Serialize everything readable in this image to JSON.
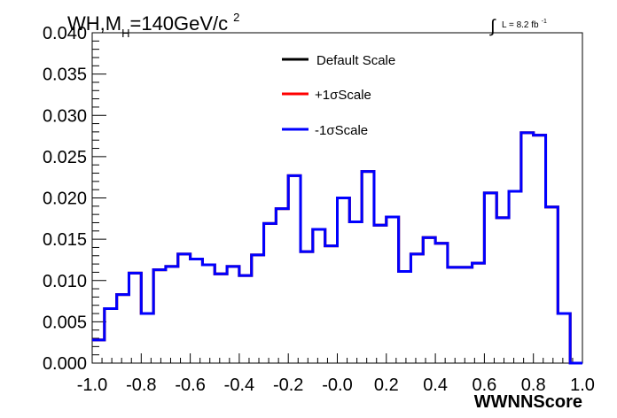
{
  "chart_data": {
    "type": "line",
    "title_main": "WH,M",
    "title_sub": "H",
    "title_rest": "=140GeV/c",
    "title_sup": "2",
    "lumi_label": "L = 8.2 fb",
    "lumi_sup": "-1",
    "lumi_integral_symbol": "∫",
    "xlabel": "WWNNScore",
    "ylabel": "",
    "xlim": [
      -1.0,
      1.0
    ],
    "ylim": [
      0.0,
      0.04
    ],
    "grid": false,
    "legend_position": "top-center",
    "x_tick_labels": [
      "-1.0",
      "-0.8",
      "-0.6",
      "-0.4",
      "-0.2",
      "-0.0",
      "0.2",
      "0.4",
      "0.6",
      "0.8",
      "1.0"
    ],
    "y_tick_labels": [
      "0.000",
      "0.005",
      "0.010",
      "0.015",
      "0.020",
      "0.025",
      "0.030",
      "0.035",
      "0.040"
    ],
    "bin_edges": [
      -1.0,
      -0.95,
      -0.9,
      -0.85,
      -0.8,
      -0.75,
      -0.7,
      -0.65,
      -0.6,
      -0.55,
      -0.5,
      -0.45,
      -0.4,
      -0.35,
      -0.3,
      -0.25,
      -0.2,
      -0.15,
      -0.1,
      -0.05,
      0.0,
      0.05,
      0.1,
      0.15,
      0.2,
      0.25,
      0.3,
      0.35,
      0.4,
      0.45,
      0.5,
      0.55,
      0.6,
      0.65,
      0.7,
      0.75,
      0.8,
      0.85,
      0.9,
      0.95,
      1.0
    ],
    "series": [
      {
        "name": "Default Scale",
        "color": "#000000",
        "values": [
          0.0028,
          0.0066,
          0.0083,
          0.0109,
          0.006,
          0.0113,
          0.0117,
          0.0132,
          0.0126,
          0.0119,
          0.0108,
          0.0117,
          0.0106,
          0.0131,
          0.0169,
          0.0187,
          0.0227,
          0.0135,
          0.0162,
          0.0142,
          0.02,
          0.0171,
          0.0232,
          0.0167,
          0.0177,
          0.0111,
          0.0132,
          0.0152,
          0.0145,
          0.0116,
          0.0116,
          0.0121,
          0.0206,
          0.0176,
          0.0208,
          0.0279,
          0.0276,
          0.0189,
          0.006,
          0.0
        ]
      },
      {
        "name": "+1σScale",
        "color": "#ff0000",
        "values": [
          0.0028,
          0.0066,
          0.0083,
          0.0109,
          0.006,
          0.0113,
          0.0117,
          0.0132,
          0.0126,
          0.0119,
          0.0108,
          0.0117,
          0.0106,
          0.0131,
          0.0169,
          0.0187,
          0.0227,
          0.0135,
          0.0162,
          0.0142,
          0.02,
          0.0171,
          0.0232,
          0.0167,
          0.0177,
          0.0111,
          0.0132,
          0.0152,
          0.0145,
          0.0116,
          0.0116,
          0.0121,
          0.0206,
          0.0176,
          0.0208,
          0.0279,
          0.0276,
          0.0189,
          0.006,
          0.0
        ]
      },
      {
        "name": "-1σScale",
        "color": "#0000ff",
        "values": [
          0.0028,
          0.0066,
          0.0083,
          0.0109,
          0.006,
          0.0113,
          0.0117,
          0.0132,
          0.0126,
          0.0119,
          0.0108,
          0.0117,
          0.0106,
          0.0131,
          0.0169,
          0.0187,
          0.0227,
          0.0135,
          0.0162,
          0.0142,
          0.02,
          0.0171,
          0.0232,
          0.0167,
          0.0177,
          0.0111,
          0.0132,
          0.0152,
          0.0145,
          0.0116,
          0.0116,
          0.0121,
          0.0206,
          0.0176,
          0.0208,
          0.0279,
          0.0276,
          0.0189,
          0.006,
          0.0
        ]
      }
    ]
  }
}
